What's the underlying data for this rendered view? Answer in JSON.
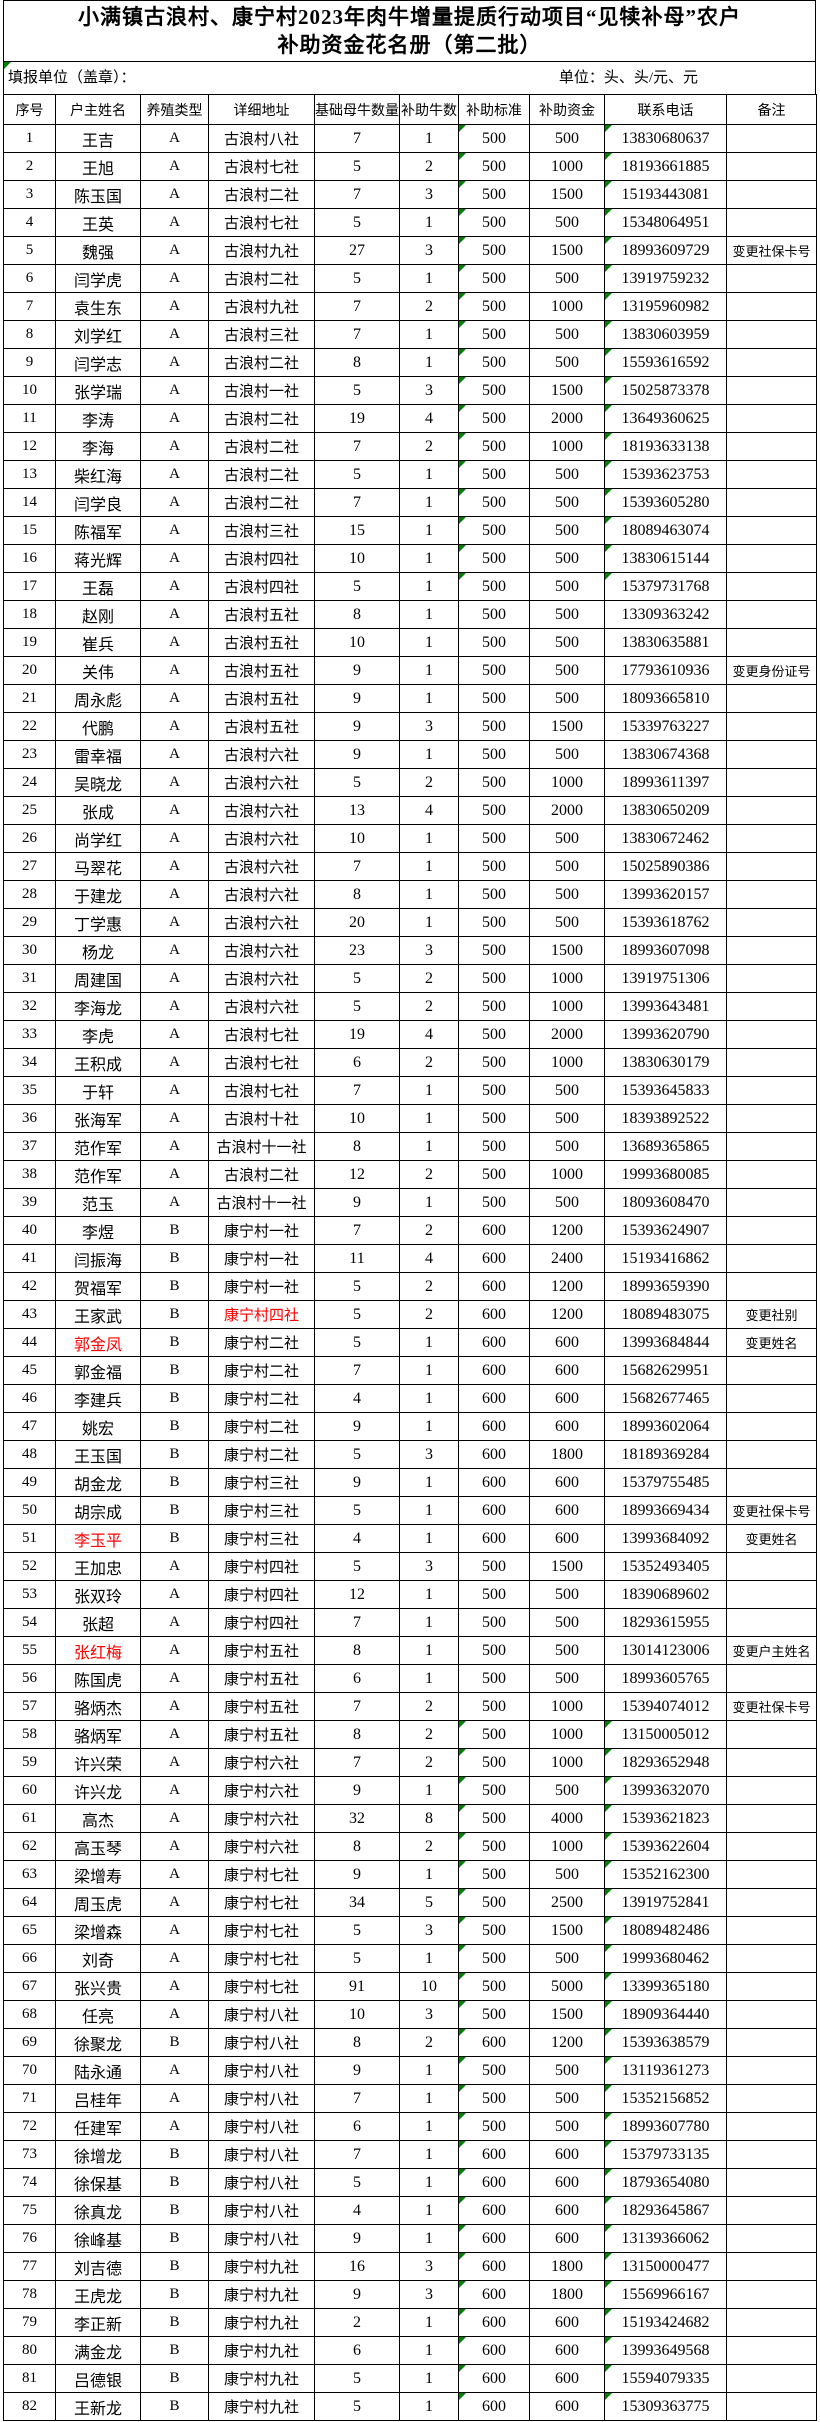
{
  "title": {
    "line1": "小满镇古浪村、康宁村2023年肉牛增量提质行动项目“见犊补母”农户",
    "line2": "补助资金花名册（第二批）"
  },
  "meta": {
    "left": "填报单位（盖章）：",
    "right": "单位：头、头/元、元"
  },
  "colors": {
    "flag_green": "#008000",
    "red_text": "#ff0000",
    "border": "#000000",
    "background": "#ffffff"
  },
  "icons": {
    "excel_flag": "green-corner-triangle"
  },
  "table": {
    "headers": [
      "序号",
      "户主姓名",
      "养殖类型",
      "详细地址",
      "基础母牛数量",
      "补助牛数",
      "补助标准",
      "补助资金",
      "联系电话",
      "备注"
    ],
    "columns_key": [
      "no",
      "name",
      "type",
      "address",
      "base_cows",
      "subsidy_cattle",
      "standard",
      "amount",
      "phone",
      "remark"
    ],
    "green_flag_row_ranges": [
      [
        1,
        17
      ],
      [
        58,
        82
      ]
    ],
    "red_name_rows": [
      44,
      51,
      55
    ],
    "red_address_rows": [
      43
    ],
    "rows": [
      [
        1,
        "王吉",
        "A",
        "古浪村八社",
        7,
        1,
        500,
        500,
        "13830680637",
        ""
      ],
      [
        2,
        "王旭",
        "A",
        "古浪村七社",
        5,
        2,
        500,
        1000,
        "18193661885",
        ""
      ],
      [
        3,
        "陈玉国",
        "A",
        "古浪村二社",
        7,
        3,
        500,
        1500,
        "15193443081",
        ""
      ],
      [
        4,
        "王英",
        "A",
        "古浪村七社",
        5,
        1,
        500,
        500,
        "15348064951",
        ""
      ],
      [
        5,
        "魏强",
        "A",
        "古浪村九社",
        27,
        3,
        500,
        1500,
        "18993609729",
        "变更社保卡号"
      ],
      [
        6,
        "闫学虎",
        "A",
        "古浪村二社",
        5,
        1,
        500,
        500,
        "13919759232",
        ""
      ],
      [
        7,
        "袁生东",
        "A",
        "古浪村九社",
        7,
        2,
        500,
        1000,
        "13195960982",
        ""
      ],
      [
        8,
        "刘学红",
        "A",
        "古浪村三社",
        7,
        1,
        500,
        500,
        "13830603959",
        ""
      ],
      [
        9,
        "闫学志",
        "A",
        "古浪村二社",
        8,
        1,
        500,
        500,
        "15593616592",
        ""
      ],
      [
        10,
        "张学瑞",
        "A",
        "古浪村一社",
        5,
        3,
        500,
        1500,
        "15025873378",
        ""
      ],
      [
        11,
        "李涛",
        "A",
        "古浪村二社",
        19,
        4,
        500,
        2000,
        "13649360625",
        ""
      ],
      [
        12,
        "李海",
        "A",
        "古浪村二社",
        7,
        2,
        500,
        1000,
        "18193633138",
        ""
      ],
      [
        13,
        "柴红海",
        "A",
        "古浪村二社",
        5,
        1,
        500,
        500,
        "15393623753",
        ""
      ],
      [
        14,
        "闫学良",
        "A",
        "古浪村二社",
        7,
        1,
        500,
        500,
        "15393605280",
        ""
      ],
      [
        15,
        "陈福军",
        "A",
        "古浪村三社",
        15,
        1,
        500,
        500,
        "18089463074",
        ""
      ],
      [
        16,
        "蒋光辉",
        "A",
        "古浪村四社",
        10,
        1,
        500,
        500,
        "13830615144",
        ""
      ],
      [
        17,
        "王磊",
        "A",
        "古浪村四社",
        5,
        1,
        500,
        500,
        "15379731768",
        ""
      ],
      [
        18,
        "赵刚",
        "A",
        "古浪村五社",
        8,
        1,
        500,
        500,
        "13309363242",
        ""
      ],
      [
        19,
        "崔兵",
        "A",
        "古浪村五社",
        10,
        1,
        500,
        500,
        "13830635881",
        ""
      ],
      [
        20,
        "关伟",
        "A",
        "古浪村五社",
        9,
        1,
        500,
        500,
        "17793610936",
        "变更身份证号"
      ],
      [
        21,
        "周永彪",
        "A",
        "古浪村五社",
        9,
        1,
        500,
        500,
        "18093665810",
        ""
      ],
      [
        22,
        "代鹏",
        "A",
        "古浪村五社",
        9,
        3,
        500,
        1500,
        "15339763227",
        ""
      ],
      [
        23,
        "雷幸福",
        "A",
        "古浪村六社",
        9,
        1,
        500,
        500,
        "13830674368",
        ""
      ],
      [
        24,
        "吴晓龙",
        "A",
        "古浪村六社",
        5,
        2,
        500,
        1000,
        "18993611397",
        ""
      ],
      [
        25,
        "张成",
        "A",
        "古浪村六社",
        13,
        4,
        500,
        2000,
        "13830650209",
        ""
      ],
      [
        26,
        "尚学红",
        "A",
        "古浪村六社",
        10,
        1,
        500,
        500,
        "13830672462",
        ""
      ],
      [
        27,
        "马翠花",
        "A",
        "古浪村六社",
        7,
        1,
        500,
        500,
        "15025890386",
        ""
      ],
      [
        28,
        "于建龙",
        "A",
        "古浪村六社",
        8,
        1,
        500,
        500,
        "13993620157",
        ""
      ],
      [
        29,
        "丁学惠",
        "A",
        "古浪村六社",
        20,
        1,
        500,
        500,
        "15393618762",
        ""
      ],
      [
        30,
        "杨龙",
        "A",
        "古浪村六社",
        23,
        3,
        500,
        1500,
        "18993607098",
        ""
      ],
      [
        31,
        "周建国",
        "A",
        "古浪村六社",
        5,
        2,
        500,
        1000,
        "13919751306",
        ""
      ],
      [
        32,
        "李海龙",
        "A",
        "古浪村六社",
        5,
        2,
        500,
        1000,
        "13993643481",
        ""
      ],
      [
        33,
        "李虎",
        "A",
        "古浪村七社",
        19,
        4,
        500,
        2000,
        "13993620790",
        ""
      ],
      [
        34,
        "王积成",
        "A",
        "古浪村七社",
        6,
        2,
        500,
        1000,
        "13830630179",
        ""
      ],
      [
        35,
        "于轩",
        "A",
        "古浪村七社",
        7,
        1,
        500,
        500,
        "15393645833",
        ""
      ],
      [
        36,
        "张海军",
        "A",
        "古浪村十社",
        10,
        1,
        500,
        500,
        "18393892522",
        ""
      ],
      [
        37,
        "范作军",
        "A",
        "古浪村十一社",
        8,
        1,
        500,
        500,
        "13689365865",
        ""
      ],
      [
        38,
        "范作军",
        "A",
        "古浪村二社",
        12,
        2,
        500,
        1000,
        "19993680085",
        ""
      ],
      [
        39,
        "范玉",
        "A",
        "古浪村十一社",
        9,
        1,
        500,
        500,
        "18093608470",
        ""
      ],
      [
        40,
        "李煜",
        "B",
        "康宁村一社",
        7,
        2,
        600,
        1200,
        "15393624907",
        ""
      ],
      [
        41,
        "闫振海",
        "B",
        "康宁村一社",
        11,
        4,
        600,
        2400,
        "15193416862",
        ""
      ],
      [
        42,
        "贺福军",
        "B",
        "康宁村一社",
        5,
        2,
        600,
        1200,
        "18993659390",
        ""
      ],
      [
        43,
        "王家武",
        "B",
        "康宁村四社",
        5,
        2,
        600,
        1200,
        "18089483075",
        "变更社别"
      ],
      [
        44,
        "郭金凤",
        "B",
        "康宁村二社",
        5,
        1,
        600,
        600,
        "13993684844",
        "变更姓名"
      ],
      [
        45,
        "郭金福",
        "B",
        "康宁村二社",
        7,
        1,
        600,
        600,
        "15682629951",
        ""
      ],
      [
        46,
        "李建兵",
        "B",
        "康宁村二社",
        4,
        1,
        600,
        600,
        "15682677465",
        ""
      ],
      [
        47,
        "姚宏",
        "B",
        "康宁村二社",
        9,
        1,
        600,
        600,
        "18993602064",
        ""
      ],
      [
        48,
        "王玉国",
        "B",
        "康宁村二社",
        5,
        3,
        600,
        1800,
        "18189369284",
        ""
      ],
      [
        49,
        "胡金龙",
        "B",
        "康宁村三社",
        9,
        1,
        600,
        600,
        "15379755485",
        ""
      ],
      [
        50,
        "胡宗成",
        "B",
        "康宁村三社",
        5,
        1,
        600,
        600,
        "18993669434",
        "变更社保卡号"
      ],
      [
        51,
        "李玉平",
        "B",
        "康宁村三社",
        4,
        1,
        600,
        600,
        "13993684092",
        "变更姓名"
      ],
      [
        52,
        "王加忠",
        "A",
        "康宁村四社",
        5,
        3,
        500,
        1500,
        "15352493405",
        ""
      ],
      [
        53,
        "张双玲",
        "A",
        "康宁村四社",
        12,
        1,
        500,
        500,
        "18390689602",
        ""
      ],
      [
        54,
        "张超",
        "A",
        "康宁村四社",
        7,
        1,
        500,
        500,
        "18293615955",
        ""
      ],
      [
        55,
        "张红梅",
        "A",
        "康宁村五社",
        8,
        1,
        500,
        500,
        "13014123006",
        "变更户主姓名"
      ],
      [
        56,
        "陈国虎",
        "A",
        "康宁村五社",
        6,
        1,
        500,
        500,
        "18993605765",
        ""
      ],
      [
        57,
        "骆炳杰",
        "A",
        "康宁村五社",
        7,
        2,
        500,
        1000,
        "15394074012",
        "变更社保卡号"
      ],
      [
        58,
        "骆炳军",
        "A",
        "康宁村五社",
        8,
        2,
        500,
        1000,
        "13150005012",
        ""
      ],
      [
        59,
        "许兴荣",
        "A",
        "康宁村六社",
        7,
        2,
        500,
        1000,
        "18293652948",
        ""
      ],
      [
        60,
        "许兴龙",
        "A",
        "康宁村六社",
        9,
        1,
        500,
        500,
        "13993632070",
        ""
      ],
      [
        61,
        "高杰",
        "A",
        "康宁村六社",
        32,
        8,
        500,
        4000,
        "15393621823",
        ""
      ],
      [
        62,
        "高玉琴",
        "A",
        "康宁村六社",
        8,
        2,
        500,
        1000,
        "15393622604",
        ""
      ],
      [
        63,
        "梁增寿",
        "A",
        "康宁村七社",
        9,
        1,
        500,
        500,
        "15352162300",
        ""
      ],
      [
        64,
        "周玉虎",
        "A",
        "康宁村七社",
        34,
        5,
        500,
        2500,
        "13919752841",
        ""
      ],
      [
        65,
        "梁增森",
        "A",
        "康宁村七社",
        5,
        3,
        500,
        1500,
        "18089482486",
        ""
      ],
      [
        66,
        "刘奇",
        "A",
        "康宁村七社",
        5,
        1,
        500,
        500,
        "19993680462",
        ""
      ],
      [
        67,
        "张兴贵",
        "A",
        "康宁村七社",
        91,
        10,
        500,
        5000,
        "13399365180",
        ""
      ],
      [
        68,
        "任亮",
        "A",
        "康宁村八社",
        10,
        3,
        500,
        1500,
        "18909364440",
        ""
      ],
      [
        69,
        "徐聚龙",
        "B",
        "康宁村八社",
        8,
        2,
        600,
        1200,
        "15393638579",
        ""
      ],
      [
        70,
        "陆永通",
        "A",
        "康宁村八社",
        9,
        1,
        500,
        500,
        "13119361273",
        ""
      ],
      [
        71,
        "吕桂年",
        "A",
        "康宁村八社",
        7,
        1,
        500,
        500,
        "15352156852",
        ""
      ],
      [
        72,
        "任建军",
        "A",
        "康宁村八社",
        6,
        1,
        500,
        500,
        "18993607780",
        ""
      ],
      [
        73,
        "徐增龙",
        "B",
        "康宁村八社",
        7,
        1,
        600,
        600,
        "15379733135",
        ""
      ],
      [
        74,
        "徐保基",
        "B",
        "康宁村八社",
        5,
        1,
        600,
        600,
        "18793654080",
        ""
      ],
      [
        75,
        "徐真龙",
        "B",
        "康宁村八社",
        4,
        1,
        600,
        600,
        "18293645867",
        ""
      ],
      [
        76,
        "徐峰基",
        "B",
        "康宁村八社",
        9,
        1,
        600,
        600,
        "13139366062",
        ""
      ],
      [
        77,
        "刘吉德",
        "B",
        "康宁村九社",
        16,
        3,
        600,
        1800,
        "13150000477",
        ""
      ],
      [
        78,
        "王虎龙",
        "B",
        "康宁村九社",
        9,
        3,
        600,
        1800,
        "15569966167",
        ""
      ],
      [
        79,
        "李正新",
        "B",
        "康宁村九社",
        2,
        1,
        600,
        600,
        "15193424682",
        ""
      ],
      [
        80,
        "满金龙",
        "B",
        "康宁村九社",
        6,
        1,
        600,
        600,
        "13993649568",
        ""
      ],
      [
        81,
        "吕德银",
        "B",
        "康宁村九社",
        5,
        1,
        600,
        600,
        "15594079335",
        ""
      ],
      [
        82,
        "王新龙",
        "B",
        "康宁村九社",
        5,
        1,
        600,
        600,
        "15309363775",
        ""
      ]
    ]
  }
}
